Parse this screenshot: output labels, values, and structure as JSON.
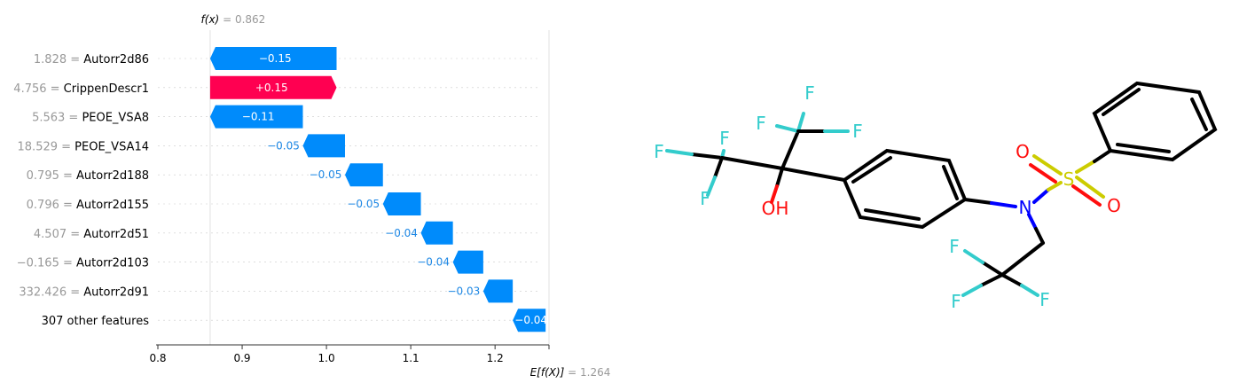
{
  "chart_data": {
    "type": "waterfall",
    "fx_label": "f(x)",
    "fx_value": "0.862",
    "efx_label": "E[f(X)]",
    "efx_value": "1.264",
    "fx": 0.862,
    "efx": 1.264,
    "xlim": [
      0.8,
      1.264
    ],
    "xticks": [
      0.8,
      0.9,
      1.0,
      1.1,
      1.2
    ],
    "xtick_labels": [
      "0.8",
      "0.9",
      "1.0",
      "1.1",
      "1.2"
    ],
    "features": [
      {
        "value": "1.828",
        "name": "Autorr2d86",
        "contribution": -0.15,
        "label": "−0.15"
      },
      {
        "value": "4.756",
        "name": "CrippenDescr1",
        "contribution": 0.15,
        "label": "+0.15"
      },
      {
        "value": "5.563",
        "name": "PEOE_VSA8",
        "contribution": -0.11,
        "label": "−0.11"
      },
      {
        "value": "18.529",
        "name": "PEOE_VSA14",
        "contribution": -0.05,
        "label": "−0.05"
      },
      {
        "value": "0.795",
        "name": "Autorr2d188",
        "contribution": -0.045,
        "label": "−0.05"
      },
      {
        "value": "0.796",
        "name": "Autorr2d155",
        "contribution": -0.045,
        "label": "−0.05"
      },
      {
        "value": "4.507",
        "name": "Autorr2d51",
        "contribution": -0.038,
        "label": "−0.04"
      },
      {
        "value": "−0.165",
        "name": "Autorr2d103",
        "contribution": -0.036,
        "label": "−0.04"
      },
      {
        "value": "332.426",
        "name": "Autorr2d91",
        "contribution": -0.035,
        "label": "−0.03"
      },
      {
        "value": "",
        "name": "307 other features",
        "contribution": -0.039,
        "label": "−0.04"
      }
    ],
    "colors": {
      "negative": "#008BFB",
      "positive": "#FF0051",
      "negative_text": "#1E88E5"
    }
  },
  "molecule": {
    "atoms": {
      "F1": "F",
      "F2": "F",
      "F3": "F",
      "F4": "F",
      "F5": "F",
      "F6": "F",
      "F7": "F",
      "F8": "F",
      "F9": "F",
      "OH": "OH",
      "N": "N",
      "S": "S",
      "O1": "O",
      "O2": "O"
    },
    "colors": {
      "F": "#33CCCC",
      "O": "#FF0D0D",
      "N": "#0000FF",
      "S": "#CCCC00",
      "C": "#000000"
    }
  }
}
